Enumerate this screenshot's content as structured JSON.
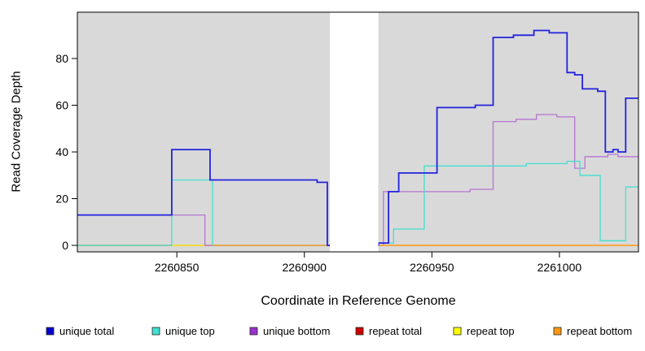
{
  "chart_data": {
    "type": "line",
    "step": true,
    "title": "",
    "xlabel": "Coordinate in Reference Genome",
    "ylabel": "Read Coverage Depth",
    "xlim": [
      2260811,
      2261031
    ],
    "ylim": [
      0,
      99
    ],
    "x_ticks": [
      2260850,
      2260900,
      2260950,
      2261000
    ],
    "y_ticks": [
      0,
      20,
      40,
      60,
      80
    ],
    "plot_background": "#d9d9d9",
    "gap_region": [
      2260910,
      2260929
    ],
    "grid": "off",
    "legend_position": "bottom",
    "series": [
      {
        "name": "repeat total",
        "color": "#cd0000",
        "width": 1.2,
        "end": 2261031,
        "points": [
          [
            2260811,
            0
          ]
        ]
      },
      {
        "name": "repeat top",
        "color": "#ffff00",
        "width": 1.2,
        "end": 2261031,
        "points": [
          [
            2260811,
            0
          ]
        ]
      },
      {
        "name": "unique bottom",
        "color": "#b674d2",
        "width": 1.3,
        "end": 2261031,
        "points": [
          [
            2260811,
            13
          ],
          [
            2260861,
            0
          ],
          [
            2260931,
            23
          ],
          [
            2260965,
            24
          ],
          [
            2260974,
            53
          ],
          [
            2260983,
            54
          ],
          [
            2260991,
            56
          ],
          [
            2260999,
            55
          ],
          [
            2261006,
            33
          ],
          [
            2261010,
            38
          ],
          [
            2261019,
            39
          ],
          [
            2261023,
            38
          ]
        ]
      },
      {
        "name": "unique top",
        "color": "#40e0d0",
        "width": 1.3,
        "end": 2261031,
        "points": [
          [
            2260811,
            0
          ],
          [
            2260848,
            28
          ],
          [
            2260864,
            0
          ],
          [
            2260929,
            1
          ],
          [
            2260935,
            7
          ],
          [
            2260947,
            34
          ],
          [
            2260987,
            35
          ],
          [
            2261003,
            36
          ],
          [
            2261008,
            30
          ],
          [
            2261016,
            2
          ],
          [
            2261026,
            25
          ]
        ]
      },
      {
        "name": "repeat bottom",
        "color": "#ffa020",
        "width": 1.3,
        "end": 2261031,
        "points": [
          [
            2260864,
            0
          ]
        ]
      },
      {
        "name": "unique total",
        "color": "#2222dd",
        "width": 1.8,
        "end": 2261031,
        "points": [
          [
            2260811,
            13
          ],
          [
            2260848,
            41
          ],
          [
            2260863,
            28
          ],
          [
            2260905,
            27
          ],
          [
            2260909,
            0
          ],
          [
            2260929,
            1
          ],
          [
            2260933,
            23
          ],
          [
            2260937,
            31
          ],
          [
            2260952,
            59
          ],
          [
            2260967,
            60
          ],
          [
            2260974,
            89
          ],
          [
            2260982,
            90
          ],
          [
            2260990,
            92
          ],
          [
            2260996,
            91
          ],
          [
            2261003,
            74
          ],
          [
            2261006,
            73
          ],
          [
            2261009,
            67
          ],
          [
            2261015,
            66
          ],
          [
            2261018,
            40
          ],
          [
            2261021,
            41
          ],
          [
            2261023,
            40
          ],
          [
            2261026,
            63
          ]
        ]
      }
    ],
    "legend": [
      {
        "label": "unique total",
        "color": "#0000cd"
      },
      {
        "label": "unique top",
        "color": "#40e0d0"
      },
      {
        "label": "unique bottom",
        "color": "#9932cc"
      },
      {
        "label": "repeat total",
        "color": "#cd0000"
      },
      {
        "label": "repeat top",
        "color": "#ffff00"
      },
      {
        "label": "repeat bottom",
        "color": "#ff9912"
      }
    ]
  }
}
